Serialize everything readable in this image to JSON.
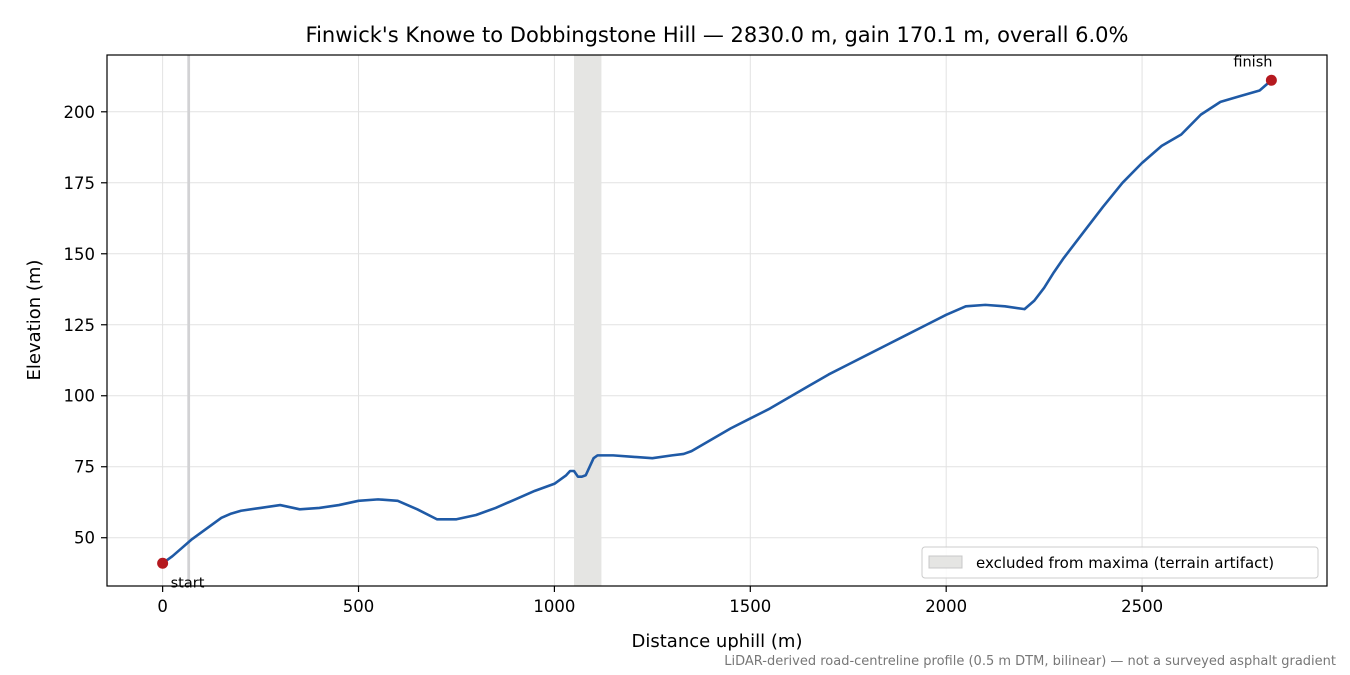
{
  "chart_data": {
    "type": "line",
    "title": "Finwick's Knowe to Dobbingstone Hill — 2830.0 m, gain 170.1 m, overall 6.0%",
    "xlabel": "Distance uphill (m)",
    "ylabel": "Elevation (m)",
    "xlim": [
      -142,
      2972
    ],
    "ylim": [
      33,
      220
    ],
    "xticks": [
      0,
      500,
      1000,
      1500,
      2000,
      2500
    ],
    "yticks": [
      50,
      75,
      100,
      125,
      150,
      175,
      200
    ],
    "grid": true,
    "legend": {
      "placement": "lower-right",
      "entries": [
        "excluded from maxima (terrain artifact)"
      ]
    },
    "caption": "LiDAR-derived road-centreline profile (0.5 m DTM, bilinear) — not a surveyed asphalt gradient",
    "colors": {
      "line": "#1f5aa6",
      "marker": "#b5191f",
      "band": "#e5e5e3",
      "band_edge": "#c8c8c8"
    },
    "excluded_ranges": [
      [
        63,
        70
      ],
      [
        1050,
        1120
      ]
    ],
    "markers": [
      {
        "label": "start",
        "x": 0,
        "y": 41.0
      },
      {
        "label": "finish",
        "x": 2830,
        "y": 211.1
      }
    ],
    "series": [
      {
        "x": [
          0,
          25,
          50,
          75,
          100,
          125,
          150,
          175,
          200,
          250,
          300,
          350,
          400,
          450,
          500,
          550,
          600,
          650,
          700,
          750,
          800,
          850,
          900,
          950,
          1000,
          1030,
          1040,
          1050,
          1060,
          1070,
          1080,
          1100,
          1110,
          1150,
          1200,
          1250,
          1300,
          1330,
          1350,
          1400,
          1450,
          1500,
          1550,
          1600,
          1650,
          1700,
          1750,
          1800,
          1850,
          1900,
          1950,
          2000,
          2050,
          2100,
          2150,
          2200,
          2225,
          2250,
          2275,
          2300,
          2350,
          2400,
          2450,
          2500,
          2550,
          2600,
          2650,
          2700,
          2750,
          2800,
          2830
        ],
        "y": [
          41.0,
          43.5,
          46.5,
          49.5,
          52.0,
          54.5,
          57.0,
          58.5,
          59.5,
          60.5,
          61.5,
          60.0,
          60.5,
          61.5,
          63.0,
          63.5,
          63.0,
          60.0,
          56.5,
          56.5,
          58.0,
          60.5,
          63.5,
          66.5,
          69.0,
          72.0,
          73.5,
          73.5,
          71.5,
          71.5,
          72.0,
          78.0,
          79.0,
          79.0,
          78.5,
          78.0,
          79.0,
          79.5,
          80.5,
          84.5,
          88.5,
          92.0,
          95.5,
          99.5,
          103.5,
          107.5,
          111.0,
          114.5,
          118.0,
          121.5,
          125.0,
          128.5,
          131.5,
          132.0,
          131.5,
          130.5,
          133.5,
          138.0,
          143.5,
          148.5,
          157.5,
          166.5,
          175.0,
          182.0,
          188.0,
          192.0,
          199.0,
          203.5,
          205.5,
          207.5,
          211.1
        ]
      }
    ]
  }
}
